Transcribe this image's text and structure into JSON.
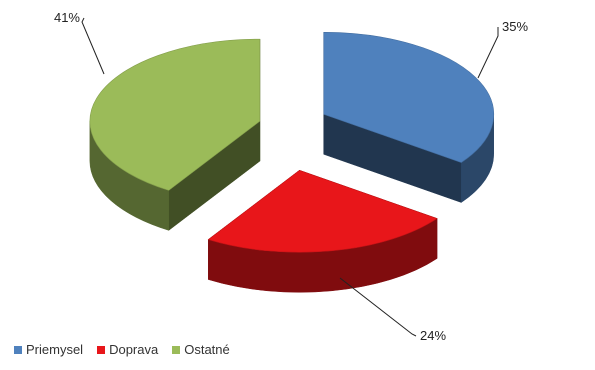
{
  "chart_data": {
    "type": "pie",
    "style": "3d-exploded",
    "categories": [
      "Priemysel",
      "Doprava",
      "Ostatné"
    ],
    "values": [
      35,
      24,
      41
    ],
    "data_labels": [
      "35%",
      "24%",
      "41%"
    ],
    "colors": [
      "#4F81BD",
      "#E8161A",
      "#9BBB59"
    ],
    "legend_position": "bottom-left"
  }
}
